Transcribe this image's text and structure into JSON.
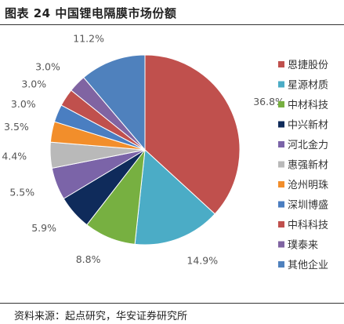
{
  "title": "图表 24 中国锂电隔膜市场份额",
  "source": "资料来源：起点研究，华安证券研究所",
  "chart_data": {
    "type": "pie",
    "title": "",
    "start": "12 o'clock",
    "direction": "clockwise",
    "legend_position": "right",
    "slices": [
      {
        "name": "恩捷股份",
        "value": 36.8,
        "label": "36.8%",
        "color": "#c0504d"
      },
      {
        "name": "星源材质",
        "value": 14.9,
        "label": "14.9%",
        "color": "#4bacc6"
      },
      {
        "name": "中材科技",
        "value": 8.8,
        "label": "8.8%",
        "color": "#77b041"
      },
      {
        "name": "中兴新材",
        "value": 5.9,
        "label": "5.9%",
        "color": "#0f2b5b"
      },
      {
        "name": "河北金力",
        "value": 5.5,
        "label": "5.5%",
        "color": "#7b64a8"
      },
      {
        "name": "惠强新材",
        "value": 4.4,
        "label": "4.4%",
        "color": "#b9b9b9"
      },
      {
        "name": "沧州明珠",
        "value": 3.5,
        "label": "3.5%",
        "color": "#f28e2b"
      },
      {
        "name": "深圳博盛",
        "value": 3.0,
        "label": "3.0%",
        "color": "#4a7ec1"
      },
      {
        "name": "中科科技",
        "value": 3.0,
        "label": "3.0%",
        "color": "#c0504d"
      },
      {
        "name": "璞泰来",
        "value": 3.0,
        "label": "3.0%",
        "color": "#8064a2"
      },
      {
        "name": "其他企业",
        "value": 11.2,
        "label": "11.2%",
        "color": "#4f81bd"
      }
    ]
  }
}
